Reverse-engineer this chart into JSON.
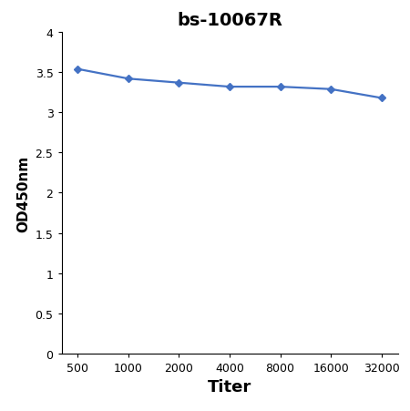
{
  "title": "bs-10067R",
  "xlabel": "Titer",
  "ylabel": "OD450nm",
  "x_values": [
    500,
    1000,
    2000,
    4000,
    8000,
    16000,
    32000
  ],
  "y_values": [
    3.54,
    3.42,
    3.37,
    3.32,
    3.32,
    3.29,
    3.18
  ],
  "line_color": "#4472C4",
  "marker_color": "#4472C4",
  "marker_style": "D",
  "marker_size": 4,
  "line_width": 1.6,
  "ylim": [
    0,
    4
  ],
  "yticks": [
    0,
    0.5,
    1,
    1.5,
    2,
    2.5,
    3,
    3.5,
    4
  ],
  "xtick_labels": [
    "500",
    "1000",
    "2000",
    "4000",
    "8000",
    "16000",
    "32000"
  ],
  "title_fontsize": 14,
  "title_fontweight": "bold",
  "xlabel_fontsize": 13,
  "xlabel_fontweight": "bold",
  "ylabel_fontsize": 11,
  "ylabel_fontweight": "bold",
  "tick_fontsize": 9,
  "background_color": "#ffffff"
}
